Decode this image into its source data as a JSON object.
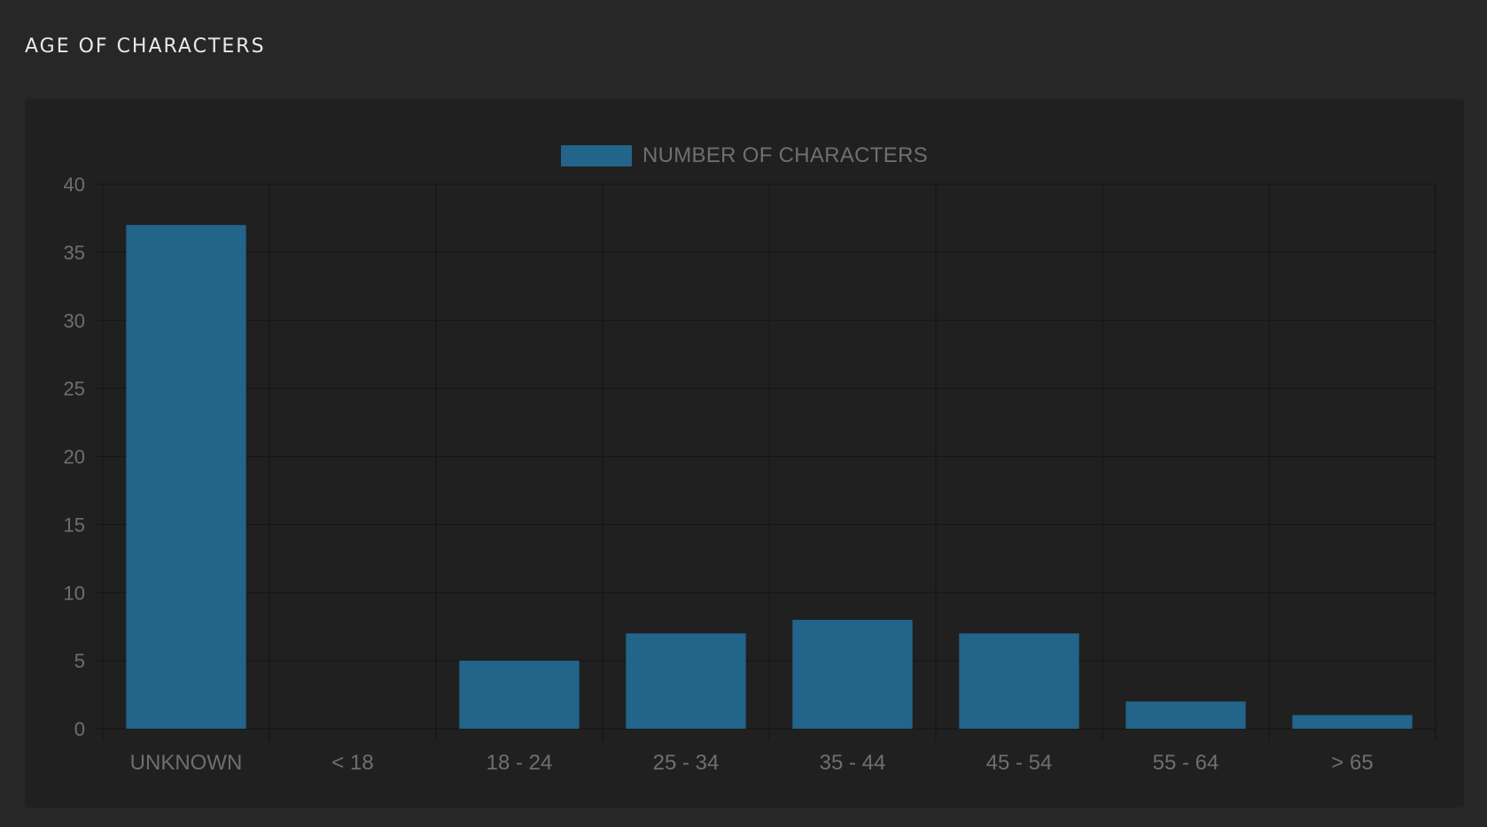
{
  "page": {
    "title": "AGE OF CHARACTERS"
  },
  "colors": {
    "background": "#272727",
    "card": "#202020",
    "bar": "#22648a",
    "grid": "#161616",
    "tick_text": "#6f6f6f"
  },
  "chart_data": {
    "type": "bar",
    "title": "",
    "xlabel": "",
    "ylabel": "",
    "categories": [
      "UNKNOWN",
      "< 18",
      "18 - 24",
      "25 - 34",
      "35 - 44",
      "45 - 54",
      "55 - 64",
      "> 65"
    ],
    "series": [
      {
        "name": "NUMBER OF CHARACTERS",
        "values": [
          37,
          0,
          5,
          7,
          8,
          7,
          2,
          1
        ]
      }
    ],
    "ylim": [
      0,
      40
    ],
    "yticks": [
      0,
      5,
      10,
      15,
      20,
      25,
      30,
      35,
      40
    ],
    "grid": true,
    "legend_position": "top-center"
  }
}
